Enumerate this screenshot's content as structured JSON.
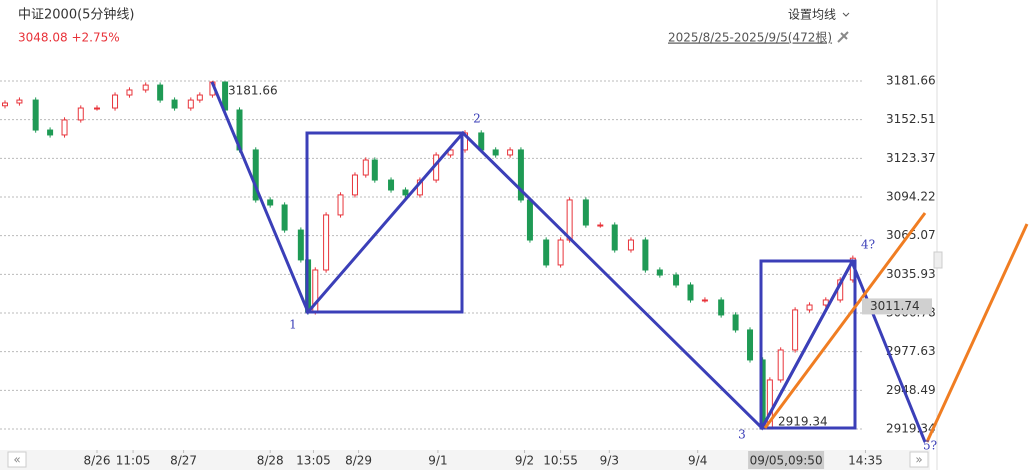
{
  "header": {
    "title": "中证2000(5分钟线)",
    "quote": "3048.08 +2.75%",
    "ma_setting": "设置均线",
    "range": "2025/8/25-2025/9/5(472根)"
  },
  "chart_data": {
    "type": "candlestick",
    "up_color": "#e8333a",
    "down_color": "#1f9a55",
    "x": [
      0,
      8,
      17,
      25,
      33,
      42,
      51,
      61,
      69,
      78,
      86,
      94,
      103,
      108,
      115,
      122,
      130,
      139,
      147,
      155,
      164,
      168,
      172,
      178,
      186,
      194,
      200,
      205,
      214,
      222,
      230,
      239,
      247,
      255,
      264,
      272,
      280,
      286,
      291,
      300,
      308,
      313,
      322,
      330,
      338,
      347,
      355,
      363,
      372,
      380,
      388,
      397,
      405,
      413,
      420,
      424,
      430,
      438,
      446,
      455,
      463,
      470
    ],
    "open": [
      3163.0,
      3165.1,
      3167.3,
      3144.7,
      3141.0,
      3152.3,
      3161.3,
      3161.3,
      3171.1,
      3174.9,
      3178.6,
      3167.3,
      3161.3,
      3167.3,
      3171.1,
      3180.9,
      3159.8,
      3129.7,
      3092.0,
      3088.2,
      3069.3,
      3046.8,
      3007.6,
      3039.2,
      3080.7,
      3095.8,
      3110.8,
      3122.1,
      3107.0,
      3099.5,
      3095.8,
      3107.0,
      3125.9,
      3129.7,
      3142.5,
      3129.7,
      3125.9,
      3129.7,
      3092.0,
      3061.8,
      3043.0,
      3061.8,
      3092.0,
      3073.1,
      3073.1,
      3054.3,
      3061.8,
      3039.2,
      3035.4,
      3027.9,
      3016.6,
      3016.6,
      3005.3,
      2994.0,
      2971.4,
      2919.3,
      2956.3,
      2978.9,
      3009.1,
      3012.8,
      3016.6,
      3031.7
    ],
    "high": [
      3167.1,
      3169.3,
      3169.3,
      3146.7,
      3154.3,
      3163.3,
      3163.3,
      3173.1,
      3176.9,
      3180.6,
      3180.6,
      3169.3,
      3169.3,
      3173.1,
      3181.66,
      3181.0,
      3161.8,
      3131.7,
      3094.0,
      3090.2,
      3071.3,
      3048.8,
      3041.2,
      3082.7,
      3097.8,
      3112.8,
      3124.1,
      3124.1,
      3109.0,
      3101.5,
      3109.0,
      3127.9,
      3131.7,
      3144.5,
      3144.5,
      3131.7,
      3131.7,
      3131.7,
      3094.0,
      3063.8,
      3063.8,
      3094.0,
      3094.0,
      3075.1,
      3075.1,
      3063.8,
      3063.8,
      3041.2,
      3037.4,
      3029.9,
      3018.6,
      3018.6,
      3007.3,
      2996.0,
      2973.4,
      2958.3,
      2980.9,
      3011.1,
      3014.8,
      3018.6,
      3033.7,
      3050.1
    ],
    "low": [
      3161.0,
      3163.1,
      3142.7,
      3139.0,
      3139.0,
      3150.3,
      3159.3,
      3159.3,
      3169.1,
      3172.9,
      3165.3,
      3159.3,
      3159.3,
      3165.3,
      3169.1,
      3157.8,
      3127.7,
      3090.0,
      3086.2,
      3067.3,
      3044.8,
      3005.6,
      3005.6,
      3037.2,
      3078.7,
      3093.8,
      3108.8,
      3105.0,
      3097.5,
      3093.8,
      3093.8,
      3105.0,
      3123.9,
      3127.7,
      3127.7,
      3123.9,
      3123.9,
      3090.0,
      3059.8,
      3041.0,
      3041.0,
      3059.8,
      3071.1,
      3071.1,
      3052.3,
      3052.3,
      3037.2,
      3033.4,
      3025.9,
      3014.6,
      3014.6,
      3003.3,
      2992.0,
      2969.4,
      2919.34,
      2921.3,
      2954.3,
      2976.9,
      3007.1,
      3010.8,
      3014.6,
      3029.7
    ],
    "close": [
      3165.1,
      3167.3,
      3144.7,
      3141.0,
      3152.3,
      3161.3,
      3161.3,
      3171.1,
      3174.9,
      3178.6,
      3167.3,
      3161.3,
      3167.3,
      3171.1,
      3180.9,
      3159.8,
      3129.7,
      3092.0,
      3088.2,
      3069.3,
      3046.8,
      3007.6,
      3039.2,
      3080.7,
      3095.8,
      3110.8,
      3122.1,
      3107.0,
      3099.5,
      3095.8,
      3107.0,
      3125.9,
      3129.7,
      3142.5,
      3129.7,
      3125.9,
      3129.7,
      3092.0,
      3061.8,
      3043.0,
      3061.8,
      3092.0,
      3073.1,
      3073.1,
      3054.3,
      3061.8,
      3039.2,
      3035.4,
      3027.9,
      3016.6,
      3016.6,
      3005.3,
      2994.0,
      2971.4,
      2919.3,
      2956.3,
      2978.9,
      3009.1,
      3012.8,
      3016.6,
      3031.7,
      3048.08
    ],
    "xlim": [
      0,
      510
    ],
    "ylim": [
      2903.5,
      3197.5
    ],
    "yticks": [
      3181.66,
      3152.51,
      3123.37,
      3094.22,
      3065.07,
      3035.93,
      3006.78,
      2977.63,
      2948.49,
      2919.34
    ],
    "xticks": [
      {
        "value": 51,
        "label": "8/26"
      },
      {
        "value": 71,
        "label": "11:05"
      },
      {
        "value": 99,
        "label": "8/27"
      },
      {
        "value": 147,
        "label": "8/28"
      },
      {
        "value": 171,
        "label": "13:05"
      },
      {
        "value": 196,
        "label": "8/29"
      },
      {
        "value": 240,
        "label": "9/1"
      },
      {
        "value": 288,
        "label": "9/2"
      },
      {
        "value": 308,
        "label": "10:55"
      },
      {
        "value": 335,
        "label": "9/3"
      },
      {
        "value": 384,
        "label": "9/4"
      },
      {
        "value": 477,
        "label": "14:35"
      }
    ],
    "crosshair_x": {
      "value": 433,
      "label": "09/05,09:50"
    },
    "price_marker": 3011.74,
    "high_label": 3181.66,
    "low_label": 2919.34,
    "grid": true,
    "wave_labels": [
      "1",
      "2",
      "3",
      "4?",
      "5?"
    ]
  }
}
